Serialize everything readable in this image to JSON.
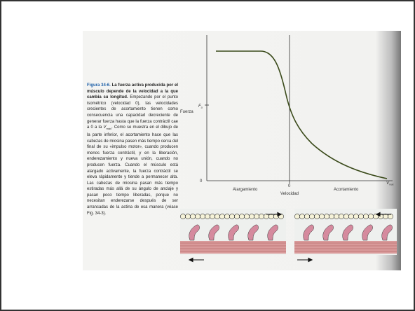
{
  "caption": {
    "figure_label": "Figura 34-6.",
    "heading": "La fuerza activa producida por el músculo depende de la velocidad a la que cambia su longitud.",
    "body_before_vmax": "Empezando por el punto isométrico (velocidad 0), las velocidades crecientes de acortamiento tienen como consecuencia una capacidad decreciente de generar fuerza hasta que la fuerza contráctil cae a 0 a la",
    "vmax_symbol": "V",
    "vmax_subscript": "máx",
    "body_after_vmax": ". Como se muestra en el dibujo de la parte inferior, el acortamiento hace que las cabezas de miosina pasen más tiempo cerca del final de su «impulso motor», cuando producen menos fuerza contráctil, y en la liberación, enderezamiento y nueva unión, cuando no producen fuerza. Cuando el músculo está alargado activamente, la fuerza contráctil se eleva rápidamente y tiende a permanecer alta. Las cabezas de miosina pasan más tiempo estiradas más allá de su ángulo de anclaje y pasan poco tiempo liberadas, porque no necesitan enderezarse después de ser arrancadas de la actina de esa manera (véase Fig. 34-3)."
  },
  "figure": {
    "y_axis_label": "Fuerza",
    "f0_symbol": "F",
    "f0_subscript": "0",
    "y_origin_label": "0",
    "x_zero_label": "0",
    "x_axis_label": "Velocidad",
    "left_region_label": "Alargamiento",
    "right_region_label": "Acortamiento",
    "vmax_symbol": "V",
    "vmax_subscript": "máx"
  }
}
